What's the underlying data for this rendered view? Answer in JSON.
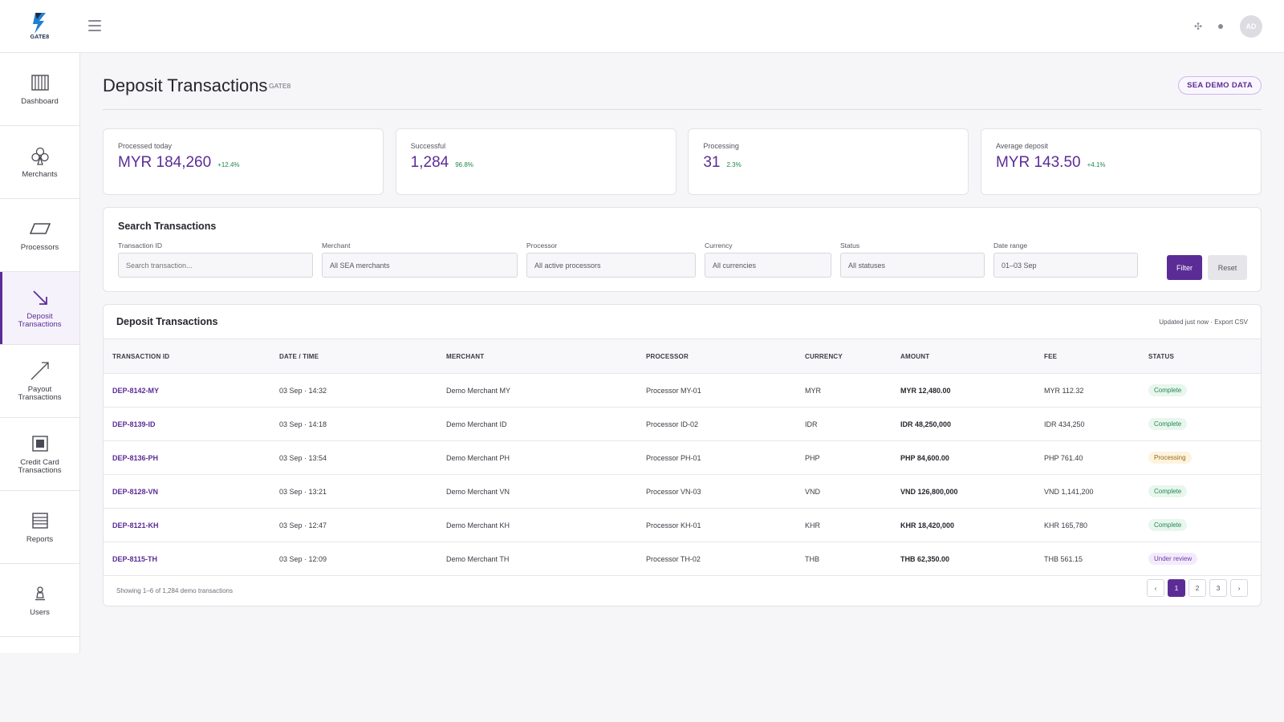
{
  "brand": {
    "name": "GATE8"
  },
  "header": {
    "avatar": "AD"
  },
  "sidebar": {
    "items": [
      {
        "label": "Dashboard",
        "label2": ""
      },
      {
        "label": "Merchants",
        "label2": ""
      },
      {
        "label": "Processors",
        "label2": ""
      },
      {
        "label": "Deposit",
        "label2": "Transactions"
      },
      {
        "label": "Payout",
        "label2": "Transactions"
      },
      {
        "label": "Credit Card",
        "label2": "Transactions"
      },
      {
        "label": "Reports",
        "label2": ""
      },
      {
        "label": "Users",
        "label2": ""
      }
    ]
  },
  "page": {
    "title": "Deposit Transactions",
    "subtitle": "GATE8",
    "badge": "SEA DEMO DATA"
  },
  "stats": [
    {
      "label": "Processed today",
      "value": "MYR 184,260",
      "delta": "+12.4%"
    },
    {
      "label": "Successful",
      "value": "1,284",
      "delta": "96.8%"
    },
    {
      "label": "Processing",
      "value": "31",
      "delta": "2.3%"
    },
    {
      "label": "Average deposit",
      "value": "MYR 143.50",
      "delta": "+4.1%"
    }
  ],
  "search": {
    "title": "Search Transactions",
    "fields": [
      {
        "label": "Transaction ID",
        "placeholder": "Search transaction..."
      },
      {
        "label": "Merchant",
        "value": "All SEA merchants"
      },
      {
        "label": "Processor",
        "value": "All active processors"
      },
      {
        "label": "Currency",
        "value": "All currencies"
      },
      {
        "label": "Status",
        "value": "All statuses"
      },
      {
        "label": "Date range",
        "value": "01–03 Sep"
      }
    ],
    "filter_label": "Filter",
    "reset_label": "Reset"
  },
  "table": {
    "title": "Deposit Transactions",
    "updated": "Updated just now",
    "separator": " · ",
    "export": "Export CSV",
    "columns": [
      "TRANSACTION ID",
      "DATE / TIME",
      "MERCHANT",
      "PROCESSOR",
      "CURRENCY",
      "AMOUNT",
      "FEE",
      "STATUS"
    ],
    "rows": [
      {
        "id": "DEP-8142-MY",
        "datetime": "03 Sep · 14:32",
        "merchant": "Demo Merchant MY",
        "processor": "Processor MY-01",
        "currency": "MYR",
        "amount": "MYR 12,480.00",
        "fee": "MYR 112.32",
        "status": "Complete",
        "status_kind": "complete"
      },
      {
        "id": "DEP-8139-ID",
        "datetime": "03 Sep · 14:18",
        "merchant": "Demo Merchant ID",
        "processor": "Processor ID-02",
        "currency": "IDR",
        "amount": "IDR 48,250,000",
        "fee": "IDR 434,250",
        "status": "Complete",
        "status_kind": "complete"
      },
      {
        "id": "DEP-8136-PH",
        "datetime": "03 Sep · 13:54",
        "merchant": "Demo Merchant PH",
        "processor": "Processor PH-01",
        "currency": "PHP",
        "amount": "PHP 84,600.00",
        "fee": "PHP 761.40",
        "status": "Processing",
        "status_kind": "processing"
      },
      {
        "id": "DEP-8128-VN",
        "datetime": "03 Sep · 13:21",
        "merchant": "Demo Merchant VN",
        "processor": "Processor VN-03",
        "currency": "VND",
        "amount": "VND 126,800,000",
        "fee": "VND 1,141,200",
        "status": "Complete",
        "status_kind": "complete"
      },
      {
        "id": "DEP-8121-KH",
        "datetime": "03 Sep · 12:47",
        "merchant": "Demo Merchant KH",
        "processor": "Processor KH-01",
        "currency": "KHR",
        "amount": "KHR 18,420,000",
        "fee": "KHR 165,780",
        "status": "Complete",
        "status_kind": "complete"
      },
      {
        "id": "DEP-8115-TH",
        "datetime": "03 Sep · 12:09",
        "merchant": "Demo Merchant TH",
        "processor": "Processor TH-02",
        "currency": "THB",
        "amount": "THB 62,350.00",
        "fee": "THB 561.15",
        "status": "Under review",
        "status_kind": "review"
      }
    ],
    "footer": "Showing 1–6 of 1,284 demo transactions",
    "pager": {
      "prev": "‹",
      "pages": [
        "1",
        "2",
        "3"
      ],
      "next": "›"
    }
  }
}
